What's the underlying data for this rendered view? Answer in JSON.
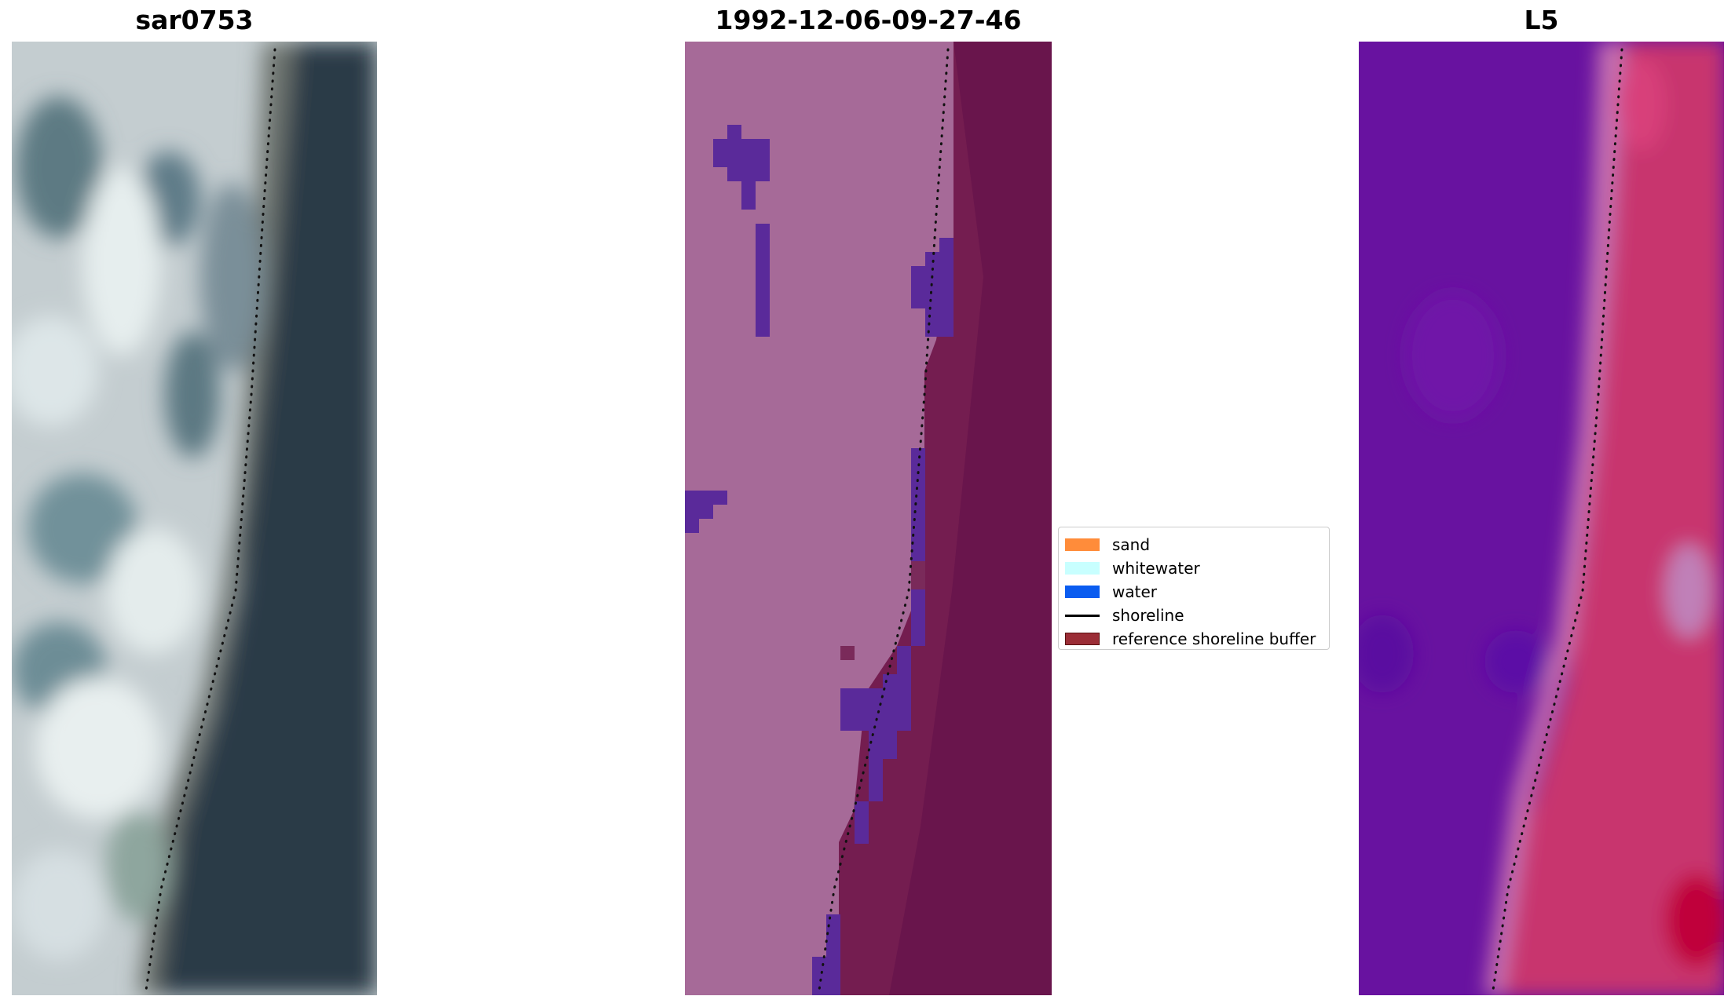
{
  "panels": [
    {
      "title": "sar0753"
    },
    {
      "title": "1992-12-06-09-27-46"
    },
    {
      "title": "L5"
    }
  ],
  "legend": {
    "items": [
      {
        "label": "sand",
        "color": "#ff8c3a"
      },
      {
        "label": "whitewater",
        "color": "#c8ffff"
      },
      {
        "label": "water",
        "color": "#0a5cf0"
      },
      {
        "label": "shoreline",
        "color": "#000000"
      },
      {
        "label": "reference shoreline buffer",
        "color": "#9b2d36"
      }
    ]
  },
  "colors": {
    "rgb_land": "#c9d2d4",
    "rgb_water": "#2a3845",
    "class_land": "#a66a98",
    "class_sea": "#6a1848",
    "class_water_pixel": "#5a2a9a",
    "ndwi_land": "#6a12a2",
    "ndwi_sea": "#c8336e"
  }
}
